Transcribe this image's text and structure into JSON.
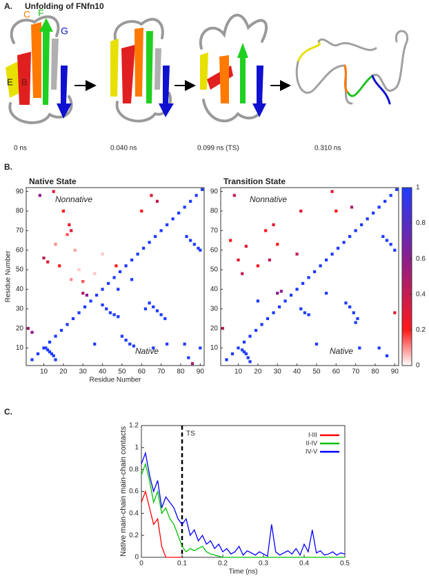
{
  "figure": {
    "panel_labels": [
      "A.",
      "B.",
      "C."
    ]
  },
  "panel_a": {
    "title": "Unfolding of  FNfn10",
    "strand_labels": [
      "C",
      "F",
      "G",
      "E",
      "B"
    ],
    "times": [
      "0 ns",
      "0.040 ns",
      "0.099 ns  (TS)",
      "0.310 ns"
    ]
  },
  "chart_data": [
    {
      "type": "heatmap",
      "title": "Native State",
      "annotations": [
        "Nonnative",
        "Native"
      ],
      "x_label": "Residue Number",
      "y_label": "Residue Number",
      "xlim": [
        1,
        92
      ],
      "ylim": [
        1,
        92
      ],
      "xticks": [
        10,
        20,
        30,
        40,
        50,
        60,
        70,
        80,
        90
      ],
      "yticks": [
        10,
        20,
        30,
        40,
        50,
        60,
        70,
        80,
        90
      ],
      "colorscale": [
        [
          0,
          "#ffffff"
        ],
        [
          0.2,
          "#ff1a1a"
        ],
        [
          0.6,
          "#8c1f8c"
        ],
        [
          1,
          "#1f3cff"
        ]
      ],
      "x": [
        4,
        7,
        10,
        13,
        16,
        19,
        22,
        25,
        28,
        31,
        34,
        37,
        40,
        43,
        46,
        49,
        52,
        55,
        58,
        61,
        64,
        67,
        70,
        73,
        76,
        79,
        82,
        85,
        88,
        91,
        11,
        12,
        13,
        14,
        15,
        16,
        40,
        42,
        44,
        46,
        48,
        50,
        52,
        54,
        56,
        64,
        66,
        68,
        70,
        72,
        83,
        85,
        87,
        89,
        90,
        62,
        73,
        82,
        90,
        84,
        66,
        36,
        48,
        55,
        30,
        32,
        2,
        4,
        86,
        8,
        15,
        20,
        23,
        24,
        10,
        12,
        18,
        24,
        30,
        65,
        68,
        60,
        22,
        16,
        40,
        36,
        26,
        47,
        28
      ],
      "y": [
        4,
        7,
        10,
        13,
        16,
        19,
        22,
        25,
        28,
        31,
        34,
        37,
        40,
        43,
        46,
        49,
        52,
        55,
        58,
        61,
        64,
        67,
        70,
        73,
        76,
        79,
        82,
        85,
        88,
        91,
        10,
        9,
        8,
        7,
        6,
        4,
        32,
        30,
        28,
        27,
        26,
        16,
        14,
        12,
        11,
        33,
        31,
        29,
        27,
        25,
        67,
        65,
        63,
        61,
        60,
        30,
        12,
        12,
        10,
        5,
        10,
        12,
        40,
        45,
        38,
        37,
        20,
        18,
        2,
        88,
        90,
        80,
        73,
        70,
        56,
        54,
        52,
        45,
        44,
        88,
        85,
        80,
        68,
        63,
        58,
        48,
        60,
        52,
        50
      ],
      "values": [
        1,
        1,
        1,
        1,
        1,
        1,
        1,
        1,
        1,
        1,
        1,
        1,
        1,
        1,
        1,
        1,
        1,
        1,
        1,
        1,
        1,
        1,
        1,
        1,
        1,
        1,
        1,
        1,
        1,
        1,
        1,
        1,
        1,
        1,
        1,
        1,
        1,
        1,
        1,
        1,
        1,
        1,
        1,
        1,
        1,
        1,
        1,
        1,
        1,
        1,
        1,
        1,
        1,
        1,
        1,
        1,
        1,
        1,
        1,
        1,
        1,
        1,
        1,
        1,
        0.5,
        0.6,
        0.5,
        0.6,
        0.5,
        0.6,
        0.3,
        0.2,
        0.25,
        0.3,
        0.4,
        0.3,
        0.2,
        0.1,
        0.15,
        0.3,
        0.4,
        0.2,
        0.15,
        0.1,
        0.05,
        0.05,
        0.08,
        0.2,
        0.05
      ]
    },
    {
      "type": "heatmap",
      "title": "Transition State",
      "annotations": [
        "Nonnative",
        "Native"
      ],
      "xlim": [
        1,
        92
      ],
      "ylim": [
        1,
        92
      ],
      "xticks": [
        10,
        20,
        30,
        40,
        50,
        60,
        70,
        80,
        90
      ],
      "yticks": [
        10,
        20,
        30,
        40,
        50,
        60,
        70,
        80,
        90
      ],
      "colorscale": [
        [
          0,
          "#ffffff"
        ],
        [
          0.2,
          "#ff1a1a"
        ],
        [
          0.6,
          "#8c1f8c"
        ],
        [
          1,
          "#1f3cff"
        ]
      ],
      "colorbar": {
        "lim": [
          0,
          1
        ],
        "ticks": [
          0,
          0.2,
          0.4,
          0.6,
          0.8,
          1
        ]
      },
      "x": [
        4,
        7,
        10,
        13,
        16,
        19,
        22,
        25,
        28,
        31,
        34,
        37,
        40,
        43,
        46,
        49,
        52,
        55,
        58,
        61,
        64,
        67,
        70,
        73,
        76,
        79,
        82,
        85,
        88,
        91,
        12,
        13,
        14,
        15,
        16,
        42,
        44,
        46,
        65,
        67,
        69,
        71,
        70,
        84,
        86,
        88,
        90,
        50,
        72,
        82,
        86,
        20,
        30,
        32,
        2,
        55,
        8,
        28,
        24,
        14,
        10,
        20,
        26,
        12,
        40,
        42,
        58,
        68,
        60,
        30,
        6,
        90
      ],
      "y": [
        4,
        7,
        10,
        13,
        16,
        19,
        22,
        25,
        28,
        31,
        34,
        37,
        40,
        43,
        46,
        49,
        52,
        55,
        58,
        61,
        64,
        67,
        70,
        73,
        76,
        79,
        82,
        85,
        88,
        91,
        9,
        8,
        7,
        5,
        3,
        30,
        28,
        27,
        33,
        31,
        28,
        25,
        23,
        67,
        65,
        63,
        60,
        12,
        10,
        10,
        6,
        34,
        38,
        39,
        20,
        38,
        88,
        73,
        70,
        62,
        55,
        52,
        55,
        48,
        58,
        80,
        90,
        82,
        80,
        63,
        65,
        28
      ],
      "values": [
        1,
        1,
        1,
        1,
        1,
        1,
        1,
        1,
        1,
        1,
        1,
        1,
        1,
        1,
        1,
        1,
        1,
        1,
        1,
        1,
        1,
        1,
        1,
        1,
        1,
        1,
        1,
        1,
        1,
        1,
        1,
        1,
        1,
        1,
        1,
        1,
        1,
        1,
        1,
        1,
        1,
        1,
        1,
        1,
        1,
        1,
        1,
        1,
        1,
        1,
        1,
        1,
        0.6,
        0.6,
        0.4,
        1,
        0.4,
        0.3,
        0.2,
        0.3,
        0.3,
        0.2,
        0.4,
        0.4,
        0.4,
        0.3,
        0.3,
        0.5,
        0.2,
        0.2,
        0.2,
        0.3
      ]
    },
    {
      "type": "line",
      "x_label": "Time (ns)",
      "y_label": "Native main-chain main-chain contacts",
      "xlim": [
        0,
        0.5
      ],
      "ylim": [
        0,
        1.2
      ],
      "xticks": [
        0,
        0.1,
        0.2,
        0.3,
        0.4,
        0.5
      ],
      "yticks": [
        0,
        0.2,
        0.4,
        0.6,
        0.8,
        1,
        1.2
      ],
      "annotation": {
        "text": "TS",
        "x": 0.1
      },
      "x": [
        0,
        0.01,
        0.02,
        0.03,
        0.04,
        0.05,
        0.06,
        0.07,
        0.08,
        0.09,
        0.1,
        0.11,
        0.12,
        0.13,
        0.14,
        0.15,
        0.16,
        0.17,
        0.18,
        0.19,
        0.2,
        0.21,
        0.22,
        0.23,
        0.24,
        0.25,
        0.26,
        0.27,
        0.28,
        0.29,
        0.3,
        0.31,
        0.32,
        0.33,
        0.34,
        0.35,
        0.36,
        0.37,
        0.38,
        0.39,
        0.4,
        0.41,
        0.42,
        0.43,
        0.44,
        0.45,
        0.46,
        0.47,
        0.48,
        0.49,
        0.5
      ],
      "series": [
        {
          "name": "I-III",
          "color": "#ff0000",
          "values": [
            0.5,
            0.6,
            0.45,
            0.3,
            0.35,
            0.1,
            0,
            0,
            0,
            0,
            0,
            null,
            null,
            null,
            null,
            null,
            null,
            null,
            null,
            null,
            null,
            null,
            null,
            null,
            null,
            null,
            null,
            null,
            null,
            null,
            null,
            null,
            null,
            null,
            null,
            null,
            null,
            null,
            null,
            null,
            null,
            null,
            null,
            null,
            null,
            null,
            null,
            null,
            null,
            null,
            null
          ]
        },
        {
          "name": "II-IV",
          "color": "#00c000",
          "values": [
            0.75,
            0.85,
            0.7,
            0.5,
            0.6,
            0.4,
            0.45,
            0.35,
            0.3,
            0.2,
            0.1,
            0.05,
            0.08,
            0.06,
            0.08,
            0.1,
            0.05,
            0.03,
            0.02,
            0.01,
            0,
            0,
            0,
            0,
            0,
            0,
            0,
            0,
            0,
            0,
            0,
            0,
            0,
            0,
            0,
            0,
            0,
            0,
            0,
            0,
            0,
            0,
            0,
            0,
            0,
            0,
            0,
            0,
            0,
            0,
            0
          ]
        },
        {
          "name": "IV-V",
          "color": "#0000ff",
          "values": [
            0.85,
            0.95,
            0.75,
            0.6,
            0.7,
            0.45,
            0.55,
            0.5,
            0.45,
            0.35,
            0.3,
            0.35,
            0.2,
            0.25,
            0.15,
            0.2,
            0.12,
            0.15,
            0.08,
            0.12,
            0.05,
            0.08,
            0.03,
            0.05,
            0.1,
            0.02,
            0.06,
            0.04,
            0.02,
            0.05,
            0.03,
            0.01,
            0.3,
            0.05,
            0.02,
            0.04,
            0.06,
            0.03,
            0.08,
            0.02,
            0.12,
            0.05,
            0.25,
            0.04,
            0.06,
            0.02,
            0.03,
            0.05,
            0.02,
            0.04,
            0.03
          ]
        }
      ]
    }
  ]
}
